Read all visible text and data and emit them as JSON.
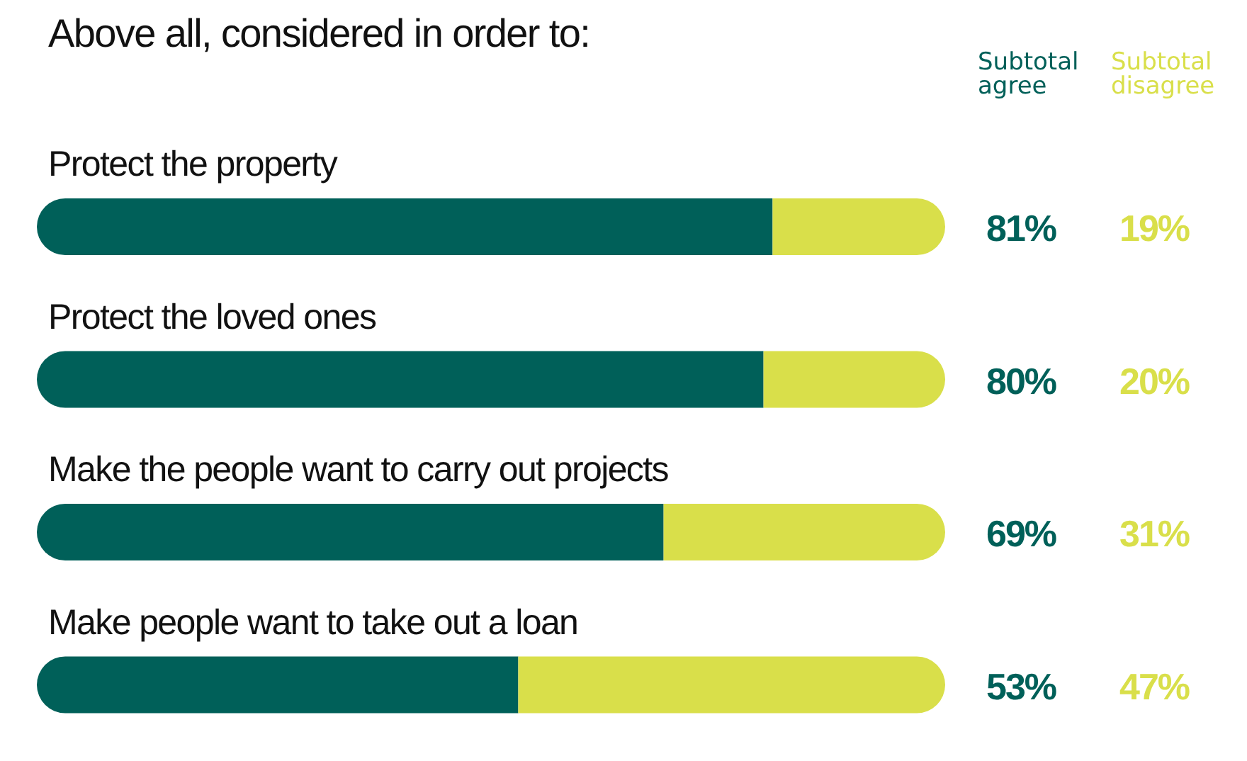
{
  "chart_data": {
    "type": "bar",
    "orientation": "horizontal",
    "stacked": true,
    "title": "Above all, considered in order to:",
    "categories": [
      "Protect the property",
      "Protect the loved ones",
      "Make the people want to carry out projects",
      "Make people want to take out a loan"
    ],
    "series": [
      {
        "name": "Subtotal agree",
        "color": "#006059",
        "values": [
          81,
          80,
          69,
          53
        ],
        "value_labels": [
          "81%",
          "80%",
          "69%",
          "53%"
        ]
      },
      {
        "name": "Subtotal disagree",
        "color": "#d9df4a",
        "values": [
          19,
          20,
          31,
          47
        ],
        "value_labels": [
          "19%",
          "20%",
          "31%",
          "47%"
        ]
      }
    ],
    "legend": "top right",
    "grid": false
  }
}
